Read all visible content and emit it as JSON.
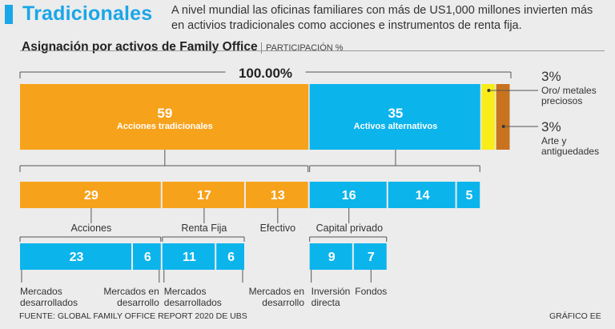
{
  "header": {
    "title": "Tradicionales",
    "intro": "A nivel mundial las oficinas familiares con más de US1,000 millones invierten más en activios tradicionales como acciones e instrumentos de renta fija."
  },
  "colors": {
    "orange": "#f7a21b",
    "blue": "#0cb4ec",
    "yellow": "#f9ec1b",
    "brown": "#c8731f",
    "title": "#1aa6e8"
  },
  "chart_data": {
    "type": "bar",
    "title": "Asignación por activos de Family Office",
    "unit": "PARTICIPACIÓN %",
    "total_label": "100.00%",
    "top_level": [
      {
        "value": 59,
        "label": "Acciones tradicionales",
        "color": "orange"
      },
      {
        "value": 35,
        "label": "Activos alternativos",
        "color": "blue"
      },
      {
        "value": 3,
        "label": "Oro/ metales preciosos",
        "color": "yellow",
        "value_label": "3%"
      },
      {
        "value": 3,
        "label": "Arte y antiguedades",
        "color": "brown",
        "value_label": "3%"
      }
    ],
    "second_level": [
      {
        "value": 29,
        "parent": "Acciones tradicionales",
        "label": "Acciones",
        "color": "orange"
      },
      {
        "value": 17,
        "parent": "Acciones tradicionales",
        "label": "Renta Fija",
        "color": "orange"
      },
      {
        "value": 13,
        "parent": "Acciones tradicionales",
        "label": "Efectivo",
        "color": "orange"
      },
      {
        "value": 16,
        "parent": "Activos alternativos",
        "label": "Capital privado",
        "color": "blue"
      },
      {
        "value": 14,
        "parent": "Activos alternativos",
        "label": "",
        "color": "blue"
      },
      {
        "value": 5,
        "parent": "Activos alternativos",
        "label": "",
        "color": "blue"
      }
    ],
    "third_level": [
      {
        "value": 23,
        "parent": "Acciones",
        "label": "Mercados desarrollados"
      },
      {
        "value": 6,
        "parent": "Acciones",
        "label": "Mercados en desarrollo"
      },
      {
        "value": 11,
        "parent": "Renta Fija",
        "label": "Mercados desarrollados"
      },
      {
        "value": 6,
        "parent": "Renta Fija",
        "label": "Mercados en desarrollo"
      },
      {
        "value": 9,
        "parent": "Capital privado",
        "label": "Inversión directa"
      },
      {
        "value": 7,
        "parent": "Capital privado",
        "label": "Fondos"
      }
    ]
  },
  "footer": {
    "source": "FUENTE: GLOBAL FAMILY OFFICE REPORT 2020 DE UBS",
    "credit": "GRÁFICO EE"
  }
}
